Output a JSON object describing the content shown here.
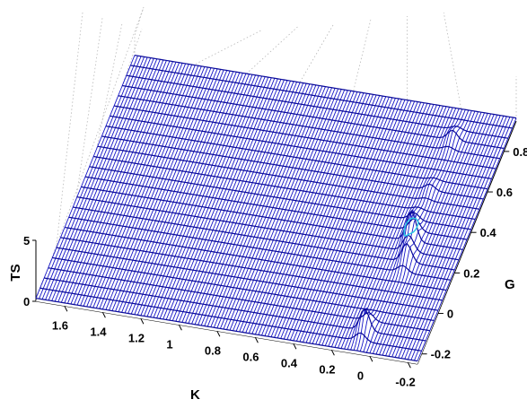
{
  "chart_data": {
    "type": "surface",
    "xlabel": "K",
    "ylabel": "G",
    "zlabel": "TS",
    "xlim": [
      -0.25,
      1.75
    ],
    "ylim": [
      -0.25,
      0.95
    ],
    "zlim": [
      0,
      5
    ],
    "x_ticks": [
      "-0.2",
      "0",
      "0.2",
      "0.4",
      "0.6",
      "0.8",
      "1",
      "1.2",
      "1.4",
      "1.6"
    ],
    "y_ticks": [
      "-0.2",
      "0",
      "0.2",
      "0.4",
      "0.6",
      "0.8"
    ],
    "z_ticks": [
      "0",
      "5"
    ],
    "surface_color": "#1515c8",
    "highlight_color": "#2ec8e8",
    "grid": true,
    "peaks": [
      {
        "K": 0.02,
        "G": 0.3,
        "TS": 2.5
      },
      {
        "K": 0.0,
        "G": 0.2,
        "TS": 1.5
      },
      {
        "K": 0.07,
        "G": -0.15,
        "TS": 1.8
      },
      {
        "K": 0.02,
        "G": 0.8,
        "TS": 0.8
      },
      {
        "K": 0.05,
        "G": 0.4,
        "TS": 0.6
      },
      {
        "K": 0.03,
        "G": 0.55,
        "TS": 0.5
      }
    ]
  }
}
